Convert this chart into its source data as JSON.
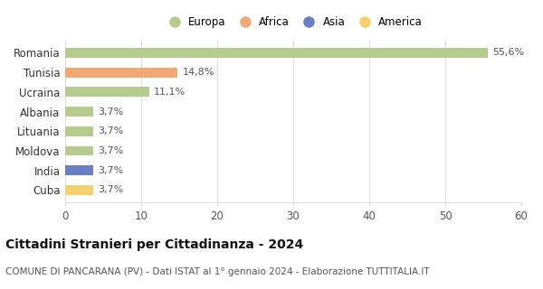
{
  "countries": [
    "Romania",
    "Tunisia",
    "Ucraina",
    "Albania",
    "Lituania",
    "Moldova",
    "India",
    "Cuba"
  ],
  "values": [
    55.6,
    14.8,
    11.1,
    3.7,
    3.7,
    3.7,
    3.7,
    3.7
  ],
  "labels": [
    "55,6%",
    "14,8%",
    "11,1%",
    "3,7%",
    "3,7%",
    "3,7%",
    "3,7%",
    "3,7%"
  ],
  "colors": [
    "#b5cc8e",
    "#f0a875",
    "#b5cc8e",
    "#b5cc8e",
    "#b5cc8e",
    "#b5cc8e",
    "#6b7fc4",
    "#f5d06e"
  ],
  "legend_labels": [
    "Europa",
    "Africa",
    "Asia",
    "America"
  ],
  "legend_colors": [
    "#b5cc8e",
    "#f0a875",
    "#6b7fc4",
    "#f5d06e"
  ],
  "xlim": [
    0,
    60
  ],
  "xticks": [
    0,
    10,
    20,
    30,
    40,
    50,
    60
  ],
  "title": "Cittadini Stranieri per Cittadinanza - 2024",
  "subtitle": "COMUNE DI PANCARANA (PV) - Dati ISTAT al 1° gennaio 2024 - Elaborazione TUTTITALIA.IT",
  "title_fontsize": 10,
  "subtitle_fontsize": 7.5,
  "bar_height": 0.5,
  "background_color": "#ffffff",
  "grid_color": "#dddddd"
}
